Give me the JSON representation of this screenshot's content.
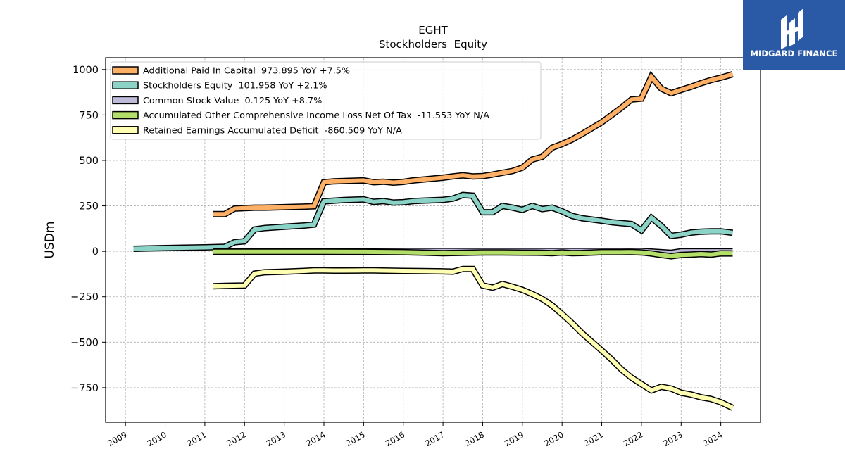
{
  "brand": {
    "name": "MIDGARD FINANCE",
    "logo_icon": "midgard-finance-logo-icon",
    "color": "#2a5aa6"
  },
  "chart_data": {
    "type": "line",
    "title": "EGHT",
    "subtitle": "Stockholders  Equity",
    "xlabel": "",
    "ylabel": "USDm",
    "ylim": [
      -940,
      1065
    ],
    "xlim": [
      2008.5,
      2025.0
    ],
    "yticks": [
      1000,
      750,
      500,
      250,
      0,
      -250,
      -500,
      -750
    ],
    "ytick_labels": [
      "1000",
      "750",
      "500",
      "250",
      "0",
      "−250",
      "−500",
      "−750"
    ],
    "xticks": [
      2009,
      2010,
      2011,
      2012,
      2013,
      2014,
      2015,
      2016,
      2017,
      2018,
      2019,
      2020,
      2021,
      2022,
      2023,
      2024
    ],
    "xtick_labels": [
      "2009",
      "2010",
      "2011",
      "2012",
      "2013",
      "2014",
      "2015",
      "2016",
      "2017",
      "2018",
      "2019",
      "2020",
      "2021",
      "2022",
      "2023",
      "2024"
    ],
    "grid": true,
    "legend_position": "top-left",
    "series": [
      {
        "name": "Additional Paid In Capital",
        "legend": "Additional Paid In Capital  973.895 YoY +7.5%",
        "color": "#fdb066",
        "points": [
          [
            2011.2,
            205
          ],
          [
            2011.5,
            205
          ],
          [
            2011.75,
            235
          ],
          [
            2012.0,
            238
          ],
          [
            2012.25,
            240
          ],
          [
            2012.5,
            240
          ],
          [
            2013.0,
            243
          ],
          [
            2013.5,
            246
          ],
          [
            2013.75,
            248
          ],
          [
            2014.0,
            380
          ],
          [
            2014.25,
            385
          ],
          [
            2014.5,
            387
          ],
          [
            2015.0,
            390
          ],
          [
            2015.25,
            380
          ],
          [
            2015.5,
            383
          ],
          [
            2015.75,
            378
          ],
          [
            2016.0,
            382
          ],
          [
            2016.25,
            390
          ],
          [
            2016.5,
            395
          ],
          [
            2017.0,
            405
          ],
          [
            2017.25,
            412
          ],
          [
            2017.5,
            418
          ],
          [
            2017.75,
            412
          ],
          [
            2018.0,
            414
          ],
          [
            2018.25,
            422
          ],
          [
            2018.5,
            432
          ],
          [
            2018.75,
            442
          ],
          [
            2019.0,
            460
          ],
          [
            2019.25,
            505
          ],
          [
            2019.5,
            520
          ],
          [
            2019.75,
            570
          ],
          [
            2020.0,
            590
          ],
          [
            2020.25,
            615
          ],
          [
            2020.5,
            645
          ],
          [
            2021.0,
            710
          ],
          [
            2021.25,
            750
          ],
          [
            2021.5,
            790
          ],
          [
            2021.75,
            835
          ],
          [
            2022.0,
            840
          ],
          [
            2022.25,
            960
          ],
          [
            2022.5,
            895
          ],
          [
            2022.75,
            870
          ],
          [
            2023.0,
            888
          ],
          [
            2023.25,
            905
          ],
          [
            2023.5,
            925
          ],
          [
            2023.75,
            942
          ],
          [
            2024.0,
            955
          ],
          [
            2024.3,
            974
          ]
        ]
      },
      {
        "name": "Stockholders Equity",
        "legend": "Stockholders Equity  101.958 YoY +2.1%",
        "color": "#8bd3c7",
        "points": [
          [
            2009.2,
            14
          ],
          [
            2010.0,
            18
          ],
          [
            2011.0,
            22
          ],
          [
            2011.5,
            25
          ],
          [
            2011.75,
            50
          ],
          [
            2012.0,
            55
          ],
          [
            2012.25,
            120
          ],
          [
            2012.5,
            128
          ],
          [
            2013.0,
            135
          ],
          [
            2013.5,
            142
          ],
          [
            2013.75,
            147
          ],
          [
            2014.0,
            275
          ],
          [
            2014.5,
            282
          ],
          [
            2015.0,
            286
          ],
          [
            2015.25,
            272
          ],
          [
            2015.5,
            276
          ],
          [
            2015.75,
            268
          ],
          [
            2016.0,
            270
          ],
          [
            2016.25,
            276
          ],
          [
            2016.5,
            279
          ],
          [
            2017.0,
            283
          ],
          [
            2017.25,
            290
          ],
          [
            2017.5,
            310
          ],
          [
            2017.75,
            306
          ],
          [
            2018.0,
            215
          ],
          [
            2018.25,
            215
          ],
          [
            2018.5,
            250
          ],
          [
            2018.75,
            240
          ],
          [
            2019.0,
            228
          ],
          [
            2019.25,
            250
          ],
          [
            2019.5,
            232
          ],
          [
            2019.75,
            240
          ],
          [
            2020.0,
            220
          ],
          [
            2020.25,
            195
          ],
          [
            2020.5,
            182
          ],
          [
            2021.0,
            168
          ],
          [
            2021.25,
            160
          ],
          [
            2021.5,
            155
          ],
          [
            2021.75,
            150
          ],
          [
            2022.0,
            115
          ],
          [
            2022.25,
            185
          ],
          [
            2022.5,
            140
          ],
          [
            2022.75,
            85
          ],
          [
            2023.0,
            92
          ],
          [
            2023.25,
            103
          ],
          [
            2023.5,
            108
          ],
          [
            2023.75,
            110
          ],
          [
            2024.0,
            110
          ],
          [
            2024.3,
            102
          ]
        ]
      },
      {
        "name": "Common Stock Value",
        "legend": "Common Stock Value  0.125 YoY +8.7%",
        "color": "#bebada",
        "points": [
          [
            2011.2,
            2
          ],
          [
            2013.0,
            2
          ],
          [
            2015.0,
            2
          ],
          [
            2017.0,
            2
          ],
          [
            2019.0,
            2
          ],
          [
            2021.0,
            2
          ],
          [
            2022.0,
            2
          ],
          [
            2022.75,
            -8
          ],
          [
            2023.0,
            0
          ],
          [
            2024.3,
            0.1
          ]
        ]
      },
      {
        "name": "Accumulated Other Comprehensive Income Loss Net Of Tax",
        "legend": "Accumulated Other Comprehensive Income Loss Net Of Tax  -11.553 YoY N/A",
        "color": "#b3de69",
        "points": [
          [
            2011.2,
            -2
          ],
          [
            2012.0,
            -2
          ],
          [
            2013.0,
            -2
          ],
          [
            2014.0,
            -2
          ],
          [
            2015.0,
            -3
          ],
          [
            2016.0,
            -5
          ],
          [
            2016.5,
            -7
          ],
          [
            2017.0,
            -10
          ],
          [
            2017.5,
            -8
          ],
          [
            2018.0,
            -6
          ],
          [
            2018.5,
            -6
          ],
          [
            2019.0,
            -7
          ],
          [
            2019.5,
            -8
          ],
          [
            2019.75,
            -10
          ],
          [
            2020.0,
            -6
          ],
          [
            2020.25,
            -10
          ],
          [
            2020.5,
            -9
          ],
          [
            2021.0,
            -5
          ],
          [
            2021.5,
            -5
          ],
          [
            2021.75,
            -4
          ],
          [
            2022.0,
            -6
          ],
          [
            2022.25,
            -12
          ],
          [
            2022.5,
            -20
          ],
          [
            2022.75,
            -27
          ],
          [
            2023.0,
            -20
          ],
          [
            2023.25,
            -18
          ],
          [
            2023.5,
            -15
          ],
          [
            2023.75,
            -18
          ],
          [
            2024.0,
            -11
          ],
          [
            2024.3,
            -11.6
          ]
        ]
      },
      {
        "name": "Retained Earnings Accumulated Deficit",
        "legend": "Retained Earnings Accumulated Deficit  -860.509 YoY N/A",
        "color": "#ffffb3",
        "points": [
          [
            2011.2,
            -192
          ],
          [
            2011.5,
            -190
          ],
          [
            2012.0,
            -188
          ],
          [
            2012.25,
            -123
          ],
          [
            2012.5,
            -115
          ],
          [
            2013.0,
            -112
          ],
          [
            2013.5,
            -108
          ],
          [
            2013.75,
            -105
          ],
          [
            2014.0,
            -105
          ],
          [
            2014.25,
            -106
          ],
          [
            2014.5,
            -106
          ],
          [
            2015.0,
            -105
          ],
          [
            2015.25,
            -105
          ],
          [
            2015.5,
            -106
          ],
          [
            2016.0,
            -108
          ],
          [
            2016.5,
            -109
          ],
          [
            2017.0,
            -110
          ],
          [
            2017.25,
            -112
          ],
          [
            2017.5,
            -97
          ],
          [
            2017.75,
            -97
          ],
          [
            2018.0,
            -188
          ],
          [
            2018.25,
            -200
          ],
          [
            2018.5,
            -180
          ],
          [
            2018.75,
            -195
          ],
          [
            2019.0,
            -212
          ],
          [
            2019.25,
            -235
          ],
          [
            2019.5,
            -262
          ],
          [
            2019.75,
            -298
          ],
          [
            2020.0,
            -345
          ],
          [
            2020.25,
            -395
          ],
          [
            2020.5,
            -450
          ],
          [
            2021.0,
            -545
          ],
          [
            2021.25,
            -595
          ],
          [
            2021.5,
            -650
          ],
          [
            2021.75,
            -695
          ],
          [
            2022.0,
            -730
          ],
          [
            2022.25,
            -765
          ],
          [
            2022.5,
            -745
          ],
          [
            2022.75,
            -755
          ],
          [
            2023.0,
            -778
          ],
          [
            2023.25,
            -788
          ],
          [
            2023.5,
            -803
          ],
          [
            2023.75,
            -812
          ],
          [
            2024.0,
            -830
          ],
          [
            2024.3,
            -860.5
          ]
        ]
      }
    ]
  }
}
